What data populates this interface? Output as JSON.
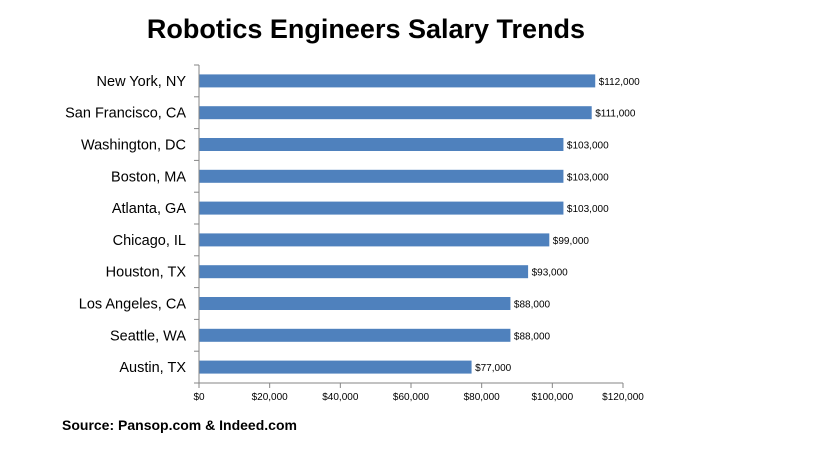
{
  "chart_data": {
    "type": "bar",
    "orientation": "horizontal",
    "title": "Robotics Engineers Salary Trends",
    "categories": [
      "New York, NY",
      "San Francisco, CA",
      "Washington, DC",
      "Boston, MA",
      "Atlanta, GA",
      "Chicago, IL",
      "Houston, TX",
      "Los Angeles, CA",
      "Seattle, WA",
      "Austin, TX"
    ],
    "values": [
      112000,
      111000,
      103000,
      103000,
      103000,
      99000,
      93000,
      88000,
      88000,
      77000
    ],
    "value_labels": [
      "$112,000",
      "$111,000",
      "$103,000",
      "$103,000",
      "$103,000",
      "$99,000",
      "$93,000",
      "$88,000",
      "$88,000",
      "$77,000"
    ],
    "xlim": [
      0,
      120000
    ],
    "x_ticks": [
      0,
      20000,
      40000,
      60000,
      80000,
      100000,
      120000
    ],
    "x_tick_labels": [
      "$0",
      "$20,000",
      "$40,000",
      "$60,000",
      "$80,000",
      "$100,000",
      "$120,000"
    ],
    "bar_color": "#4F81BD",
    "grid": false,
    "legend": "none"
  },
  "source": "Source: Pansop.com & Indeed.com"
}
